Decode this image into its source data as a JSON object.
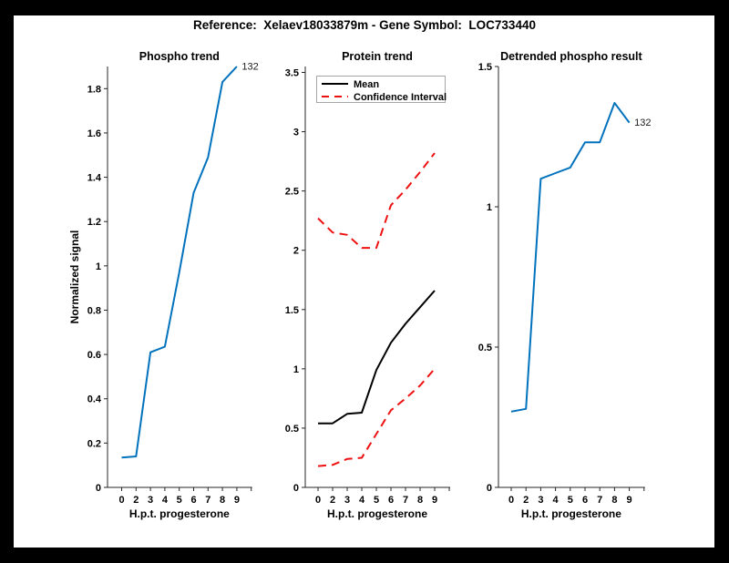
{
  "figure": {
    "title": "Reference:  Xelaev18033879m - Gene Symbol:  LOC733440",
    "background_color": "#000000",
    "canvas_color": "#ffffff",
    "axis_color": "#262626",
    "text_color": "#000000"
  },
  "chart_data": [
    {
      "type": "line",
      "title": "Phospho trend",
      "xlabel": "H.p.t. progesterone",
      "ylabel": "Normalized signal",
      "categories": [
        "0",
        "2",
        "3",
        "4",
        "5",
        "6",
        "7",
        "8",
        "9"
      ],
      "ylim": [
        0,
        1.9
      ],
      "yticks": [
        0,
        0.2,
        0.4,
        0.6,
        0.8,
        1,
        1.2,
        1.4,
        1.6,
        1.8
      ],
      "ytick_labels": [
        "0",
        "0.2",
        "0.4",
        "0.6",
        "0.8",
        "1",
        "1.2",
        "1.4",
        "1.6",
        "1.8"
      ],
      "grid": false,
      "legend": null,
      "series": [
        {
          "name": "132",
          "color": "#0072BD",
          "dash": null,
          "values": [
            0.135,
            0.14,
            0.61,
            0.635,
            0.97,
            1.33,
            1.49,
            1.83,
            1.9
          ]
        }
      ],
      "annotation": {
        "text": "132"
      }
    },
    {
      "type": "line",
      "title": "Protein trend",
      "xlabel": "H.p.t. progesterone",
      "ylabel": "",
      "categories": [
        "0",
        "2",
        "3",
        "4",
        "5",
        "6",
        "7",
        "8",
        "9"
      ],
      "ylim": [
        0,
        3.55
      ],
      "yticks": [
        0,
        0.5,
        1,
        1.5,
        2,
        2.5,
        3,
        3.5
      ],
      "ytick_labels": [
        "0",
        "0.5",
        "1",
        "1.5",
        "2",
        "2.5",
        "3",
        "3.5"
      ],
      "grid": false,
      "legend": {
        "position": "top-left",
        "border_color": "#a6a6a6",
        "entries": [
          {
            "label": "Mean",
            "color": "#000000",
            "dash": null
          },
          {
            "label": "Confidence Interval",
            "color": "#ee1111",
            "dash": "8,6"
          }
        ]
      },
      "series": [
        {
          "name": "Mean",
          "color": "#000000",
          "dash": null,
          "values": [
            0.54,
            0.54,
            0.62,
            0.63,
            0.99,
            1.22,
            1.38,
            1.52,
            1.66
          ]
        },
        {
          "name": "Confidence Interval (upper)",
          "color": "#ee1111",
          "dash": "9,6",
          "values": [
            2.27,
            2.15,
            2.13,
            2.02,
            2.02,
            2.38,
            2.51,
            2.66,
            2.82
          ]
        },
        {
          "name": "Confidence Interval (lower)",
          "color": "#ee1111",
          "dash": "9,6",
          "values": [
            0.18,
            0.19,
            0.24,
            0.25,
            0.45,
            0.65,
            0.75,
            0.86,
            1.0
          ]
        }
      ],
      "annotation": null
    },
    {
      "type": "line",
      "title": "Detrended phospho result",
      "xlabel": "H.p.t. progesterone",
      "ylabel": "",
      "categories": [
        "0",
        "2",
        "3",
        "4",
        "5",
        "6",
        "7",
        "8",
        "9"
      ],
      "ylim": [
        0,
        1.5
      ],
      "yticks": [
        0,
        0.5,
        1,
        1.5
      ],
      "ytick_labels": [
        "0",
        "0.5",
        "1",
        "1.5"
      ],
      "grid": false,
      "legend": null,
      "series": [
        {
          "name": "132",
          "color": "#0072BD",
          "dash": null,
          "values": [
            0.27,
            0.28,
            1.1,
            1.12,
            1.14,
            1.23,
            1.23,
            1.37,
            1.3
          ]
        }
      ],
      "annotation": {
        "text": "132"
      }
    }
  ]
}
